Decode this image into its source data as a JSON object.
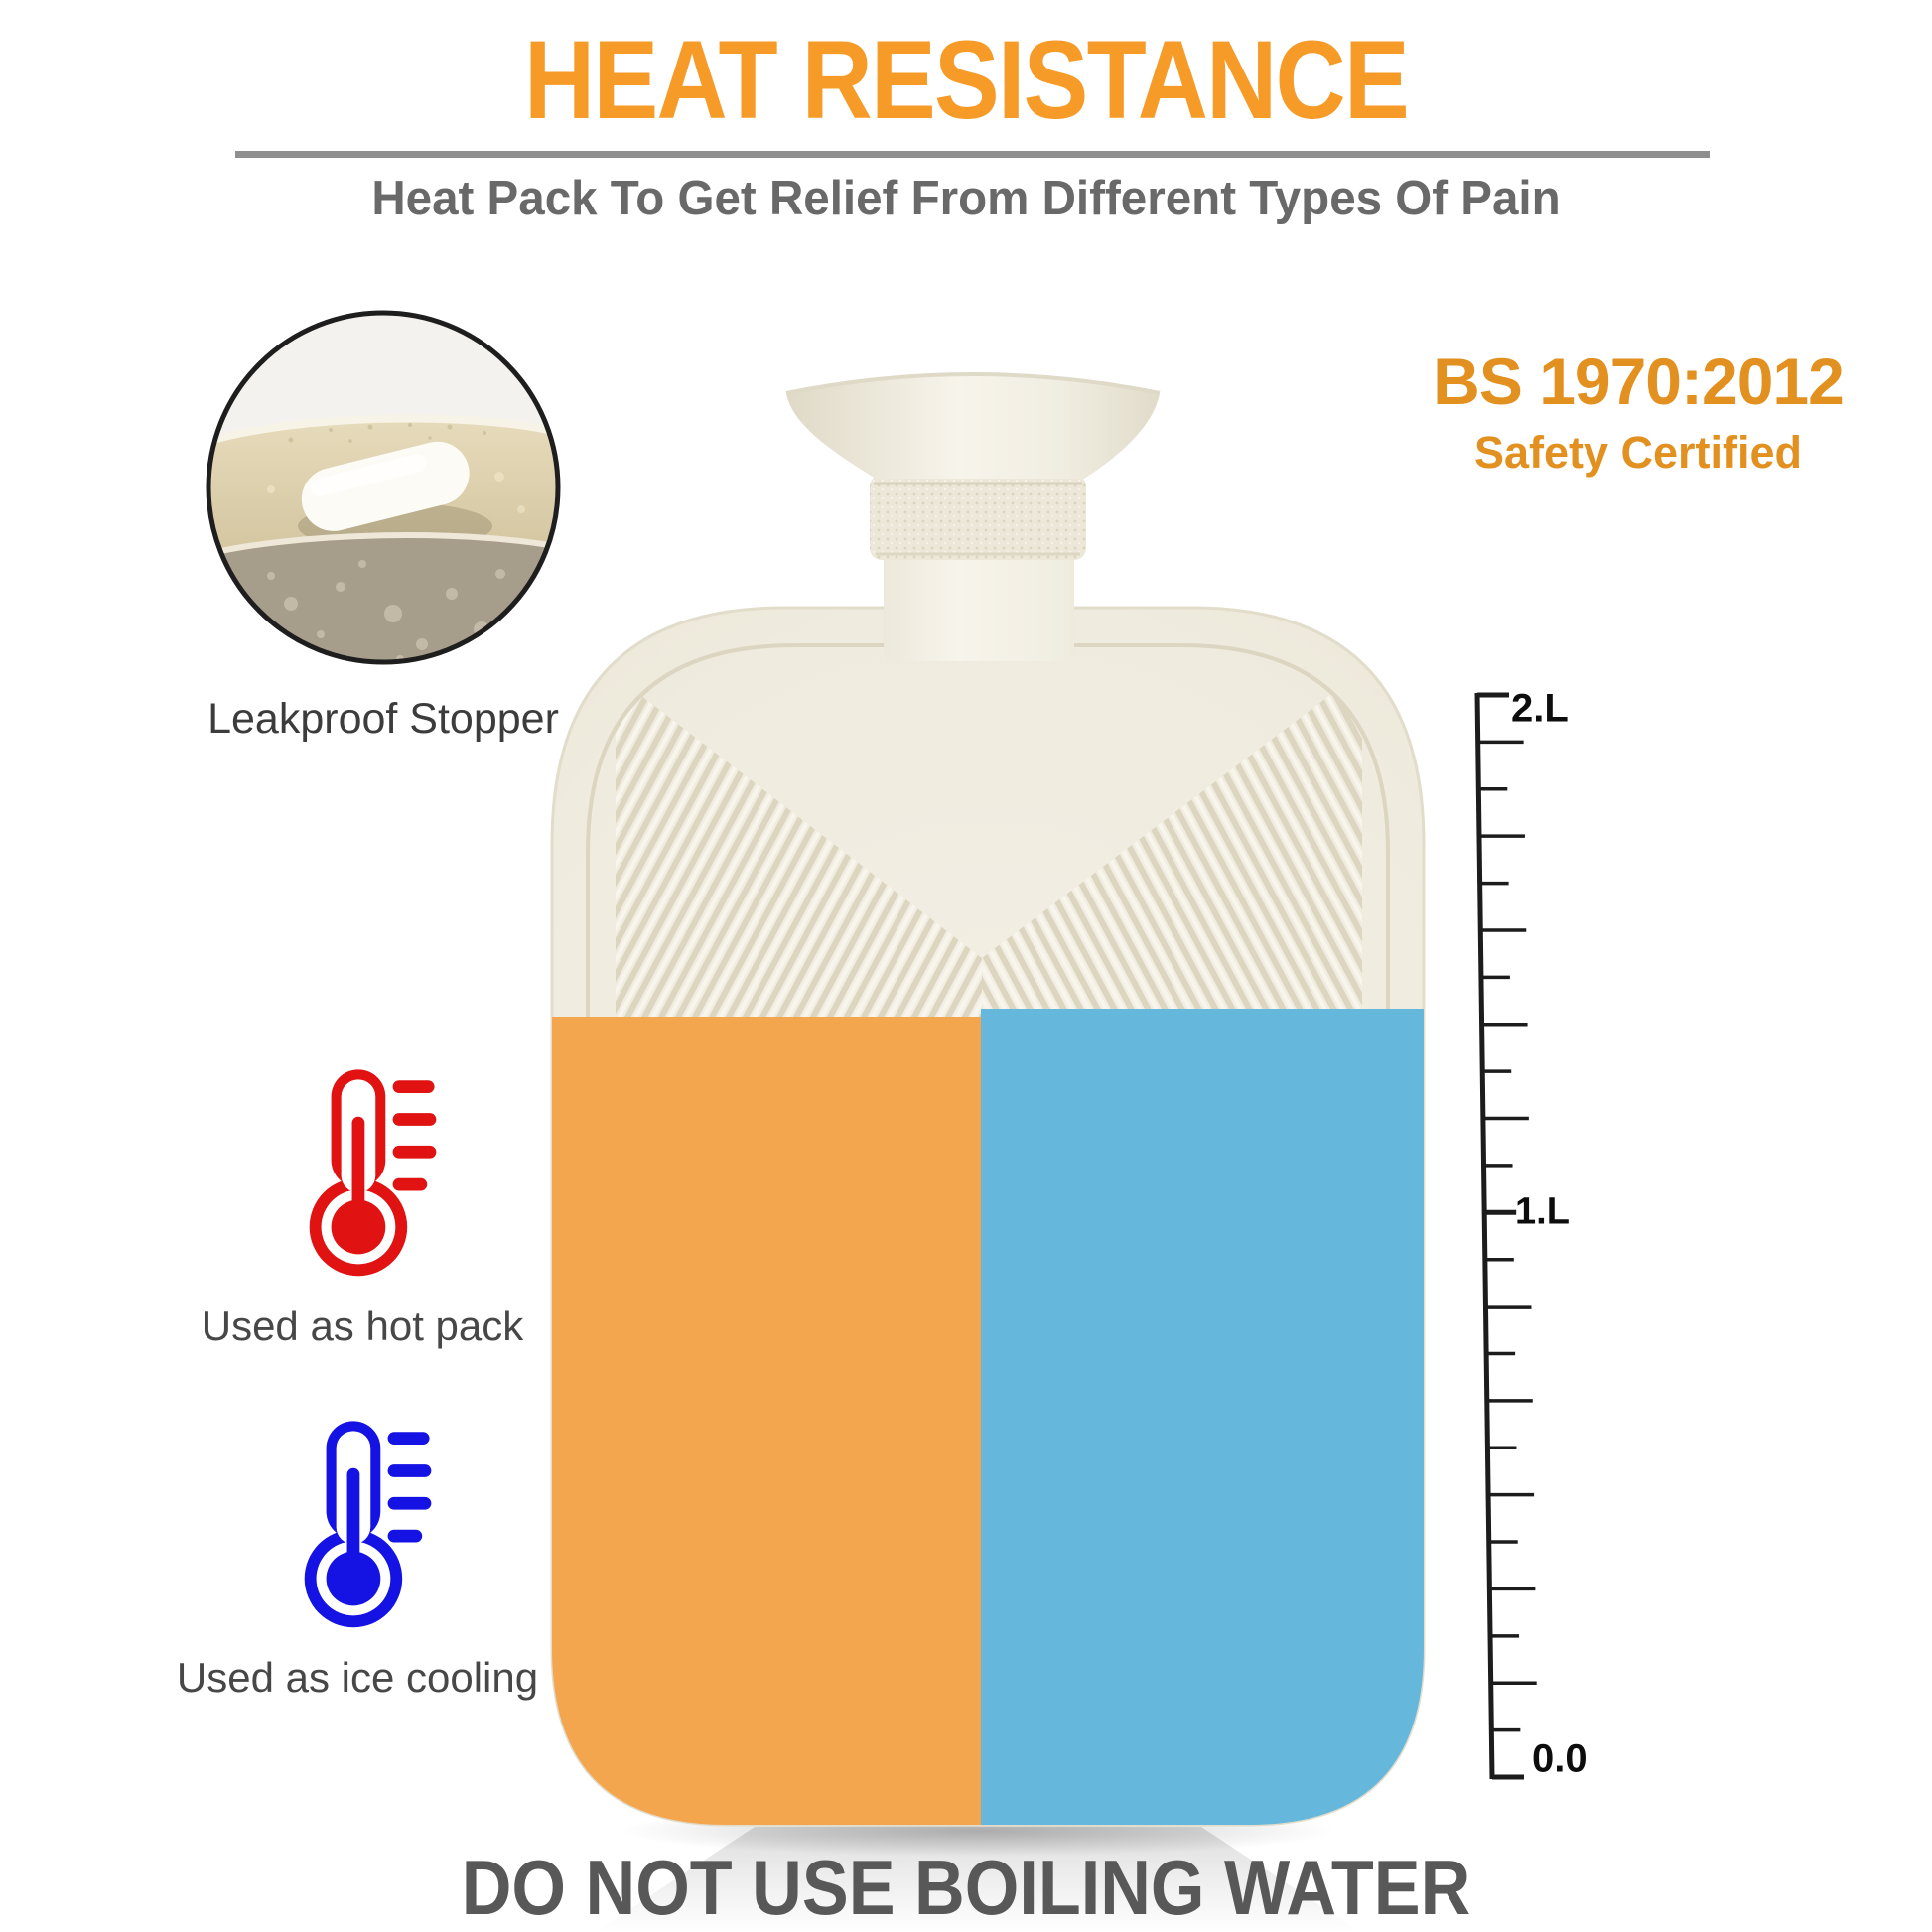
{
  "header": {
    "title": "HEAT RESISTANCE",
    "subtitle": "Heat Pack To Get Relief From Different Types Of Pain"
  },
  "certification": {
    "standard": "BS 1970:2012",
    "label": "Safety Certified"
  },
  "inset": {
    "icon": "stopper-closeup-photo",
    "label": "Leakproof Stopper"
  },
  "features": [
    {
      "icon": "hot-thermometer-icon",
      "label": "Used as hot pack",
      "color": "#E01212"
    },
    {
      "icon": "cold-thermometer-icon",
      "label": "Used as ice cooling",
      "color": "#1512E4"
    }
  ],
  "scale": {
    "labels": [
      "2.L",
      "1.L",
      "0.0"
    ]
  },
  "warning": "DO NOT USE BOILING WATER",
  "colors": {
    "title_orange": "#F79B28",
    "certification_orange": "#E2901F",
    "divider_gray": "#8F8F8F",
    "subtitle_gray": "#696969",
    "warning_gray": "#585858",
    "bottle_body_cream": "#EFEBDE",
    "bottle_hot_side": "#F4A64F",
    "bottle_cold_side": "#66B7DC"
  }
}
